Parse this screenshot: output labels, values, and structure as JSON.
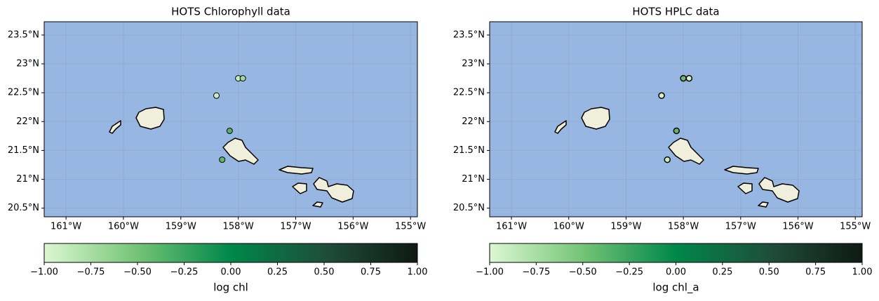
{
  "chart_data": [
    {
      "type": "scatter",
      "title": "HOTS Chlorophyll data",
      "x": [
        -158.0,
        -157.92,
        -158.38,
        -158.15,
        -158.28
      ],
      "y": [
        22.75,
        22.75,
        22.45,
        21.84,
        21.34
      ],
      "values": [
        -0.9,
        -0.7,
        -0.9,
        -0.35,
        -0.4
      ],
      "xlim": [
        -161.38,
        -154.88
      ],
      "ylim": [
        20.35,
        23.73
      ],
      "xticks": [
        {
          "value": -161,
          "label": "161°W"
        },
        {
          "value": -160,
          "label": "160°W"
        },
        {
          "value": -159,
          "label": "159°W"
        },
        {
          "value": -158,
          "label": "158°W"
        },
        {
          "value": -157,
          "label": "157°W"
        },
        {
          "value": -156,
          "label": "156°W"
        },
        {
          "value": -155,
          "label": "155°W"
        }
      ],
      "yticks": [
        {
          "value": 20.5,
          "label": "20.5°N"
        },
        {
          "value": 21,
          "label": "21°N"
        },
        {
          "value": 21.5,
          "label": "21.5°N"
        },
        {
          "value": 22,
          "label": "22°N"
        },
        {
          "value": 22.5,
          "label": "22.5°N"
        },
        {
          "value": 23,
          "label": "23°N"
        },
        {
          "value": 23.5,
          "label": "23.5°N"
        }
      ],
      "grid": true,
      "colorbar": {
        "label": "log chl",
        "lim": [
          -1,
          1
        ],
        "colormap": [
          "#dcf7d2",
          "#74c476",
          "#00874a",
          "#1f4e3a",
          "#0f1a12"
        ],
        "ticks": [
          {
            "value": -1,
            "label": "−1.00"
          },
          {
            "value": -0.75,
            "label": "−0.75"
          },
          {
            "value": -0.5,
            "label": "−0.50"
          },
          {
            "value": -0.25,
            "label": "−0.25"
          },
          {
            "value": 0,
            "label": "0.00"
          },
          {
            "value": 0.25,
            "label": "0.25"
          },
          {
            "value": 0.5,
            "label": "0.50"
          },
          {
            "value": 0.75,
            "label": "0.75"
          },
          {
            "value": 1,
            "label": "1.00"
          }
        ]
      }
    },
    {
      "type": "scatter",
      "title": "HOTS HPLC data",
      "x": [
        -158.0,
        -157.9,
        -158.38,
        -158.12,
        -158.28
      ],
      "y": [
        22.75,
        22.75,
        22.45,
        21.84,
        21.34
      ],
      "values": [
        -0.45,
        -0.95,
        -0.95,
        -0.4,
        -0.9
      ],
      "xlim": [
        -161.38,
        -154.88
      ],
      "ylim": [
        20.35,
        23.73
      ],
      "xticks": [
        {
          "value": -161,
          "label": "161°W"
        },
        {
          "value": -160,
          "label": "160°W"
        },
        {
          "value": -159,
          "label": "159°W"
        },
        {
          "value": -158,
          "label": "158°W"
        },
        {
          "value": -157,
          "label": "157°W"
        },
        {
          "value": -156,
          "label": "156°W"
        },
        {
          "value": -155,
          "label": "155°W"
        }
      ],
      "yticks": [
        {
          "value": 20.5,
          "label": "20.5°N"
        },
        {
          "value": 21,
          "label": "21°N"
        },
        {
          "value": 21.5,
          "label": "21.5°N"
        },
        {
          "value": 22,
          "label": "22°N"
        },
        {
          "value": 22.5,
          "label": "22.5°N"
        },
        {
          "value": 23,
          "label": "23°N"
        },
        {
          "value": 23.5,
          "label": "23.5°N"
        }
      ],
      "grid": true,
      "colorbar": {
        "label": "log chl_a",
        "lim": [
          -1,
          1
        ],
        "colormap": [
          "#dcf7d2",
          "#74c476",
          "#00874a",
          "#1f4e3a",
          "#0f1a12"
        ],
        "ticks": [
          {
            "value": -1,
            "label": "−1.00"
          },
          {
            "value": -0.75,
            "label": "−0.75"
          },
          {
            "value": -0.5,
            "label": "−0.50"
          },
          {
            "value": -0.25,
            "label": "−0.25"
          },
          {
            "value": 0,
            "label": "0.00"
          },
          {
            "value": 0.25,
            "label": "0.25"
          },
          {
            "value": 0.5,
            "label": "0.50"
          },
          {
            "value": 0.75,
            "label": "0.75"
          },
          {
            "value": 1,
            "label": "1.00"
          }
        ]
      }
    }
  ]
}
